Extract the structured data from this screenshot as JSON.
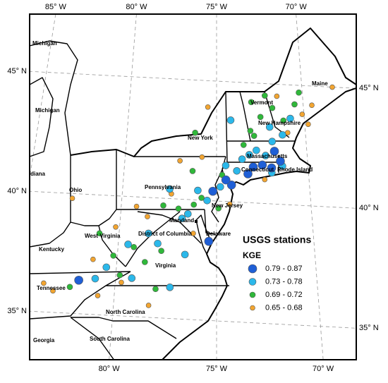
{
  "graticule": {
    "top": [
      {
        "value": -85,
        "label": "85° W"
      },
      {
        "value": -80,
        "label": "80° W"
      },
      {
        "value": -75,
        "label": "75° W"
      },
      {
        "value": -70,
        "label": "70° W"
      }
    ],
    "bottom": [
      {
        "value": -80,
        "label": "80° W"
      },
      {
        "value": -75,
        "label": "75° W"
      },
      {
        "value": -70,
        "label": "70° W"
      }
    ],
    "left": [
      {
        "value": 45,
        "label": "45° N"
      },
      {
        "value": 40,
        "label": "40° N"
      },
      {
        "value": 35,
        "label": "35° N"
      }
    ],
    "right": [
      {
        "value": 45,
        "label": "45° N"
      },
      {
        "value": 40,
        "label": "40° N"
      },
      {
        "value": 35,
        "label": "35° N"
      }
    ]
  },
  "states": [
    "Michigan",
    "Michigan",
    "Indiana",
    "Ohio",
    "Pennsylvania",
    "New York",
    "Vermont",
    "Maine",
    "New Hampshire",
    "Massachusetts",
    "Connecticut",
    "Rhode Island",
    "New Jersey",
    "Delaware",
    "Maryland",
    "District of Columbia",
    "West Virginia",
    "Virginia",
    "Kentucky",
    "Tennessee",
    "North Carolina",
    "South Carolina",
    "Georgia"
  ],
  "legend": {
    "title": "USGS stations",
    "subtitle": "KGE",
    "classes": [
      {
        "label": "0.79 - 0.87",
        "color": "#1f5fd6",
        "size": 6
      },
      {
        "label": "0.73 - 0.78",
        "color": "#2bb8ea",
        "size": 5
      },
      {
        "label": "0.69 - 0.72",
        "color": "#2fb83a",
        "size": 4
      },
      {
        "label": "0.65 - 0.68",
        "color": "#f2a531",
        "size": 3.5
      }
    ]
  },
  "stations": [
    [
      -73.0,
      41.5,
      0
    ],
    [
      -72.5,
      41.6,
      0
    ],
    [
      -72.0,
      41.5,
      0
    ],
    [
      -71.5,
      41.8,
      0
    ],
    [
      -73.3,
      41.2,
      0
    ],
    [
      -74.2,
      40.7,
      0
    ],
    [
      -74.5,
      40.9,
      0
    ],
    [
      -75.4,
      38.3,
      0
    ],
    [
      -81.8,
      36.4,
      0
    ],
    [
      -75.2,
      40.4,
      0
    ],
    [
      -71.8,
      42.2,
      0
    ],
    [
      -72.8,
      42.2,
      1
    ],
    [
      -72.3,
      42.0,
      1
    ],
    [
      -71.9,
      42.6,
      1
    ],
    [
      -73.2,
      42.0,
      1
    ],
    [
      -72.0,
      41.3,
      1
    ],
    [
      -71.4,
      41.6,
      1
    ],
    [
      -73.6,
      41.8,
      1
    ],
    [
      -73.9,
      41.3,
      1
    ],
    [
      -74.8,
      40.6,
      1
    ],
    [
      -75.5,
      40.0,
      1
    ],
    [
      -76.0,
      40.4,
      1
    ],
    [
      -77.5,
      40.4,
      1
    ],
    [
      -76.5,
      39.4,
      1
    ],
    [
      -78.5,
      38.5,
      1
    ],
    [
      -79.5,
      38.0,
      1
    ],
    [
      -80.5,
      37.0,
      1
    ],
    [
      -81.0,
      36.5,
      1
    ],
    [
      -79.2,
      36.6,
      1
    ],
    [
      -77.3,
      36.3,
      1
    ],
    [
      -76.6,
      37.7,
      1
    ],
    [
      -74.2,
      43.4,
      1
    ],
    [
      -72.0,
      43.2,
      1
    ],
    [
      -70.8,
      43.6,
      1
    ],
    [
      -71.3,
      42.9,
      1
    ],
    [
      -74.5,
      41.5,
      1
    ],
    [
      -76.8,
      39.2,
      1
    ],
    [
      -78.0,
      38.1,
      1
    ],
    [
      -72.5,
      43.6,
      2
    ],
    [
      -71.8,
      44.0,
      2
    ],
    [
      -70.5,
      44.2,
      2
    ],
    [
      -71.2,
      43.5,
      2
    ],
    [
      -72.9,
      42.8,
      2
    ],
    [
      -73.1,
      43.0,
      2
    ],
    [
      -73.5,
      42.4,
      2
    ],
    [
      -74.7,
      41.1,
      2
    ],
    [
      -75.8,
      40.1,
      2
    ],
    [
      -77.0,
      39.6,
      2
    ],
    [
      -77.8,
      39.7,
      2
    ],
    [
      -76.2,
      39.8,
      2
    ],
    [
      -76.3,
      41.2,
      2
    ],
    [
      -77.8,
      37.8,
      2
    ],
    [
      -78.6,
      37.3,
      2
    ],
    [
      -79.8,
      36.7,
      2
    ],
    [
      -80.2,
      37.5,
      2
    ],
    [
      -78.0,
      36.2,
      2
    ],
    [
      -76.2,
      42.8,
      2
    ],
    [
      -74.9,
      39.7,
      2
    ],
    [
      -82.2,
      36.1,
      2
    ],
    [
      -81.0,
      38.4,
      2
    ],
    [
      -79.2,
      37.9,
      2
    ],
    [
      -70.2,
      44.7,
      2
    ],
    [
      -72.2,
      44.5,
      2
    ],
    [
      -73.0,
      44.2,
      2
    ],
    [
      -68.2,
      45.0,
      3
    ],
    [
      -69.5,
      44.2,
      3
    ],
    [
      -70.1,
      43.8,
      3
    ],
    [
      -71.0,
      43.0,
      3
    ],
    [
      -71.5,
      44.5,
      3
    ],
    [
      -75.5,
      43.9,
      3
    ],
    [
      -75.8,
      41.8,
      3
    ],
    [
      -77.4,
      40.2,
      3
    ],
    [
      -78.6,
      39.2,
      3
    ],
    [
      -79.7,
      36.4,
      3
    ],
    [
      -81.2,
      37.3,
      3
    ],
    [
      -80.8,
      35.8,
      3
    ],
    [
      -83.5,
      36.2,
      3
    ],
    [
      -83.0,
      35.9,
      3
    ],
    [
      -78.3,
      35.5,
      3
    ],
    [
      -82.6,
      39.8,
      3
    ],
    [
      -76.2,
      38.6,
      3
    ],
    [
      -79.2,
      39.6,
      3
    ],
    [
      -74.3,
      39.9,
      3
    ],
    [
      -80.2,
      38.7,
      3
    ],
    [
      -72.4,
      41.0,
      3
    ],
    [
      -69.8,
      43.4,
      3
    ],
    [
      -77.0,
      41.6,
      3
    ]
  ]
}
